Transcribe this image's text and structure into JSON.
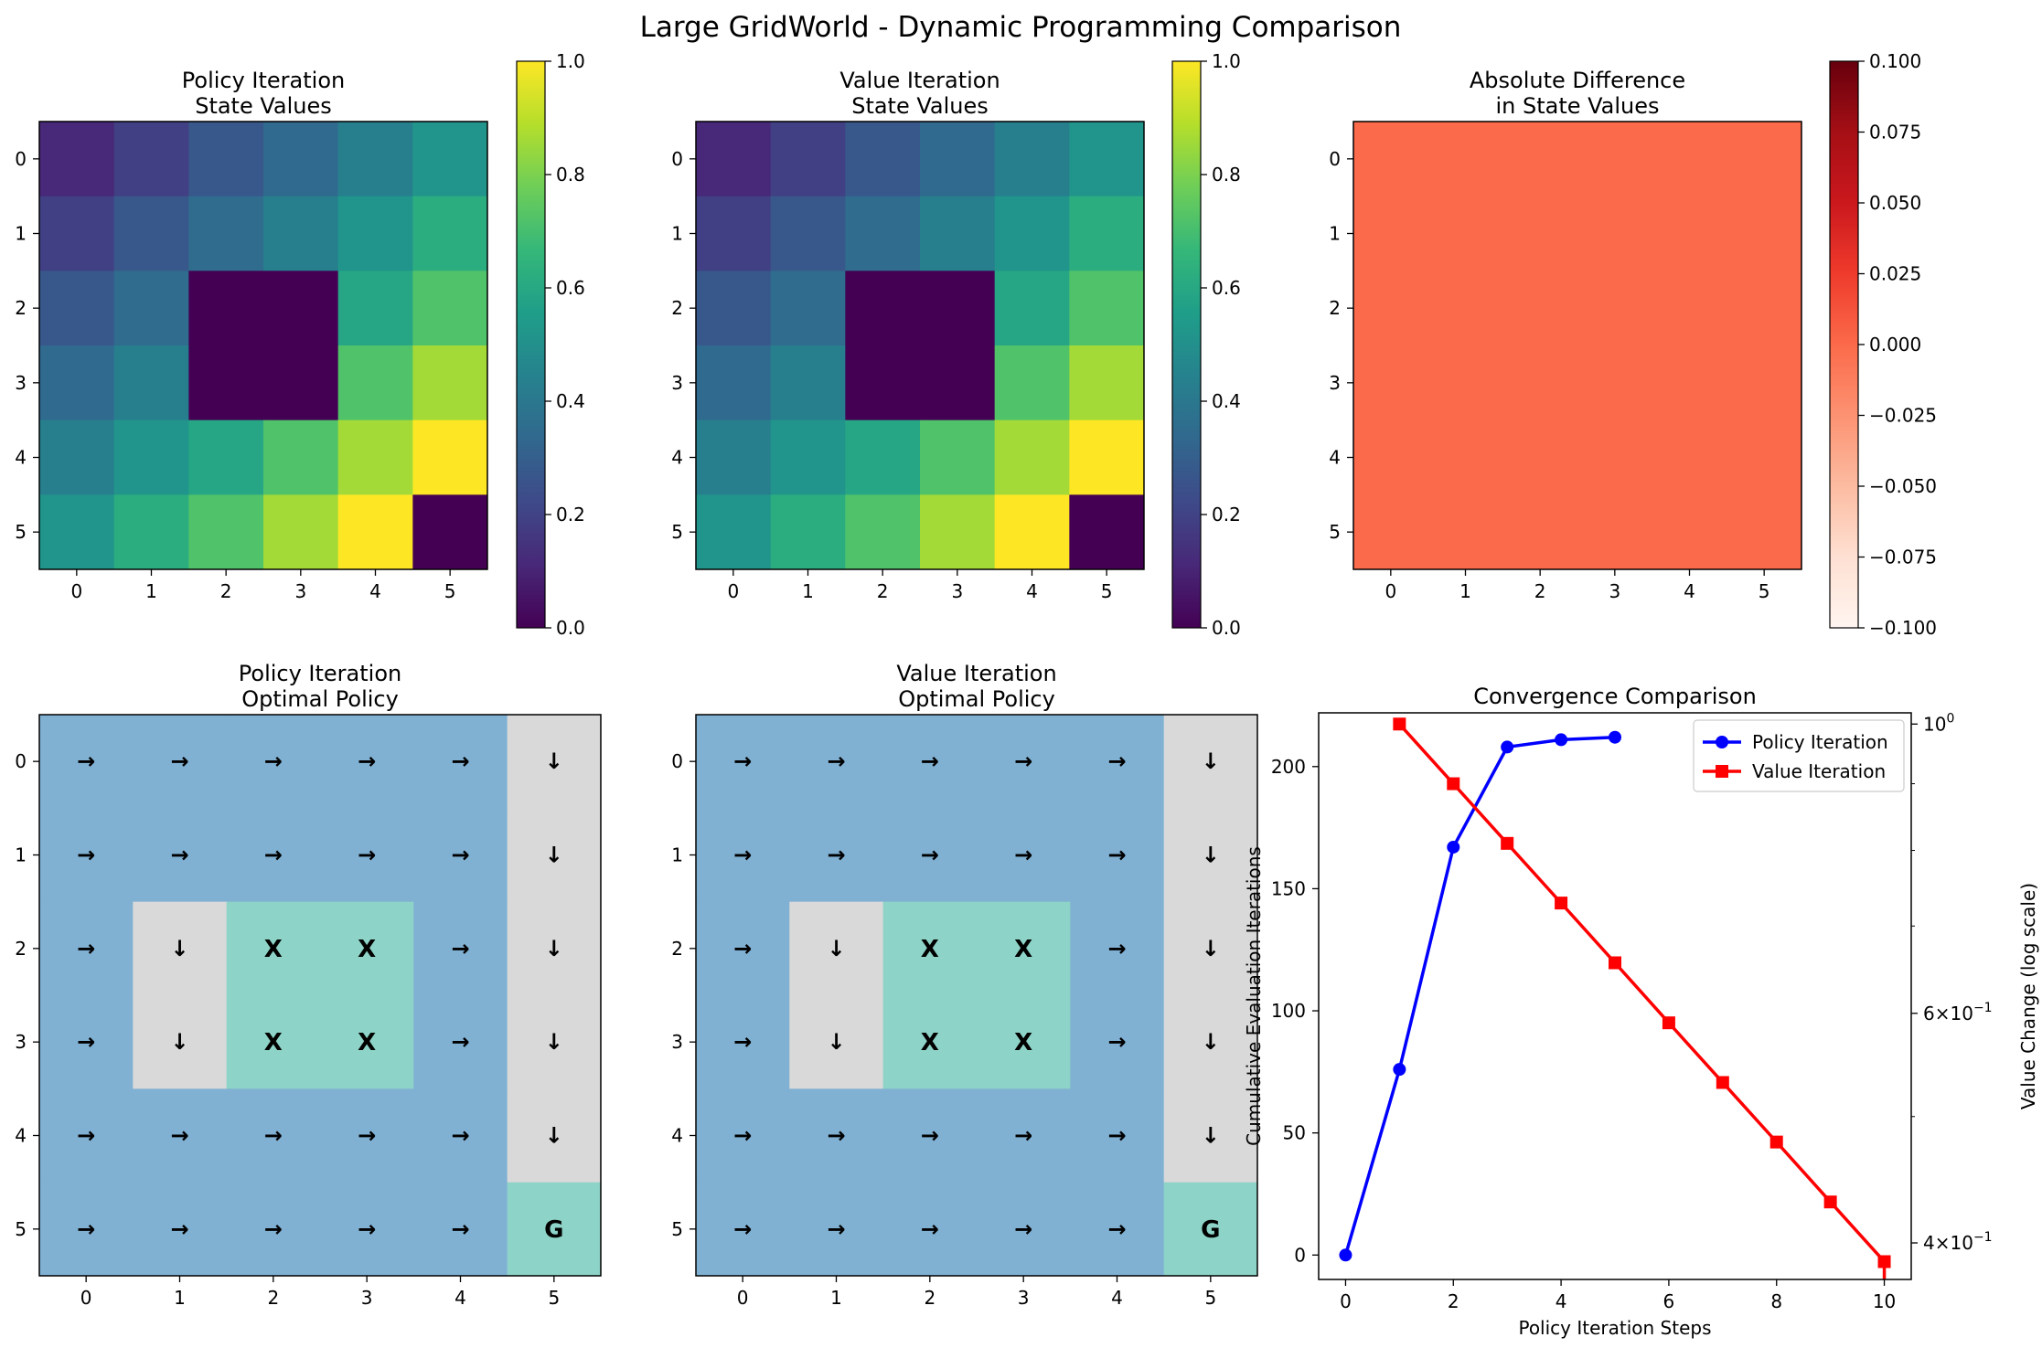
{
  "figure": {
    "title": "Large GridWorld - Dynamic Programming Comparison"
  },
  "colors": {
    "viridis_stops": [
      "#440154",
      "#482878",
      "#3e4a89",
      "#31688e",
      "#26828e",
      "#1f9e89",
      "#35b779",
      "#6ece58",
      "#b5de2b",
      "#fde725"
    ],
    "reds_stops": [
      "#fff5f0",
      "#fee0d2",
      "#fcbba1",
      "#fc9272",
      "#fb6a4a",
      "#ef3b2c",
      "#cb181d",
      "#a50f15",
      "#67000d"
    ],
    "policy_grid_blue": "#80b1d3",
    "policy_grid_gray": "#d9d9d9",
    "policy_grid_teal": "#8dd3c7",
    "policy_series": "#0000ff",
    "value_series": "#ff0000",
    "obstacle_mark": "#ff0000",
    "goal_mark": "#008000"
  },
  "chart_data": [
    {
      "type": "heatmap",
      "title": "Policy Iteration\nState Values",
      "x_ticks": [
        "0",
        "1",
        "2",
        "3",
        "4",
        "5"
      ],
      "y_ticks": [
        "0",
        "1",
        "2",
        "3",
        "4",
        "5"
      ],
      "colormap": "viridis",
      "colorbar": {
        "range": [
          0,
          1
        ],
        "ticks": [
          "0.0",
          "0.2",
          "0.4",
          "0.6",
          "0.8",
          "1.0"
        ]
      },
      "values": [
        [
          0.11,
          0.19,
          0.27,
          0.34,
          0.43,
          0.52
        ],
        [
          0.19,
          0.27,
          0.35,
          0.43,
          0.52,
          0.62
        ],
        [
          0.27,
          0.35,
          0.0,
          0.0,
          0.59,
          0.72
        ],
        [
          0.34,
          0.43,
          0.0,
          0.0,
          0.72,
          0.86
        ],
        [
          0.43,
          0.52,
          0.59,
          0.72,
          0.86,
          1.0
        ],
        [
          0.52,
          0.62,
          0.72,
          0.86,
          1.0,
          0.0
        ]
      ]
    },
    {
      "type": "heatmap",
      "title": "Value Iteration\nState Values",
      "x_ticks": [
        "0",
        "1",
        "2",
        "3",
        "4",
        "5"
      ],
      "y_ticks": [
        "0",
        "1",
        "2",
        "3",
        "4",
        "5"
      ],
      "colormap": "viridis",
      "colorbar": {
        "range": [
          0,
          1
        ],
        "ticks": [
          "0.0",
          "0.2",
          "0.4",
          "0.6",
          "0.8",
          "1.0"
        ]
      },
      "values": [
        [
          0.11,
          0.19,
          0.27,
          0.34,
          0.43,
          0.52
        ],
        [
          0.19,
          0.27,
          0.35,
          0.43,
          0.52,
          0.62
        ],
        [
          0.27,
          0.35,
          0.0,
          0.0,
          0.59,
          0.72
        ],
        [
          0.34,
          0.43,
          0.0,
          0.0,
          0.72,
          0.86
        ],
        [
          0.43,
          0.52,
          0.59,
          0.72,
          0.86,
          1.0
        ],
        [
          0.52,
          0.62,
          0.72,
          0.86,
          1.0,
          0.0
        ]
      ]
    },
    {
      "type": "heatmap",
      "title": "Absolute Difference\nin State Values",
      "x_ticks": [
        "0",
        "1",
        "2",
        "3",
        "4",
        "5"
      ],
      "y_ticks": [
        "0",
        "1",
        "2",
        "3",
        "4",
        "5"
      ],
      "colormap": "reds",
      "colorbar": {
        "range": [
          -0.1,
          0.1
        ],
        "ticks": [
          "−0.100",
          "−0.075",
          "−0.050",
          "−0.025",
          "0.000",
          "0.025",
          "0.050",
          "0.075",
          "0.100"
        ]
      },
      "values": [
        [
          0,
          0,
          0,
          0,
          0,
          0
        ],
        [
          0,
          0,
          0,
          0,
          0,
          0
        ],
        [
          0,
          0,
          0,
          0,
          0,
          0
        ],
        [
          0,
          0,
          0,
          0,
          0,
          0
        ],
        [
          0,
          0,
          0,
          0,
          0,
          0
        ],
        [
          0,
          0,
          0,
          0,
          0,
          0
        ]
      ]
    },
    {
      "type": "heatmap",
      "title": "Policy Iteration\nOptimal Policy",
      "x_ticks": [
        "0",
        "1",
        "2",
        "3",
        "4",
        "5"
      ],
      "y_ticks": [
        "0",
        "1",
        "2",
        "3",
        "4",
        "5"
      ],
      "cell_kinds": [
        [
          "blue",
          "blue",
          "blue",
          "blue",
          "blue",
          "gray"
        ],
        [
          "blue",
          "blue",
          "blue",
          "blue",
          "blue",
          "gray"
        ],
        [
          "blue",
          "gray",
          "teal",
          "teal",
          "blue",
          "gray"
        ],
        [
          "blue",
          "gray",
          "teal",
          "teal",
          "blue",
          "gray"
        ],
        [
          "blue",
          "blue",
          "blue",
          "blue",
          "blue",
          "gray"
        ],
        [
          "blue",
          "blue",
          "blue",
          "blue",
          "blue",
          "teal"
        ]
      ],
      "symbols": [
        [
          "→",
          "→",
          "→",
          "→",
          "→",
          "↓"
        ],
        [
          "→",
          "→",
          "→",
          "→",
          "→",
          "↓"
        ],
        [
          "→",
          "↓",
          "X",
          "X",
          "→",
          "↓"
        ],
        [
          "→",
          "↓",
          "X",
          "X",
          "→",
          "↓"
        ],
        [
          "→",
          "→",
          "→",
          "→",
          "→",
          "↓"
        ],
        [
          "→",
          "→",
          "→",
          "→",
          "→",
          "G"
        ]
      ]
    },
    {
      "type": "heatmap",
      "title": "Value Iteration\nOptimal Policy",
      "x_ticks": [
        "0",
        "1",
        "2",
        "3",
        "4",
        "5"
      ],
      "y_ticks": [
        "0",
        "1",
        "2",
        "3",
        "4",
        "5"
      ],
      "cell_kinds": [
        [
          "blue",
          "blue",
          "blue",
          "blue",
          "blue",
          "gray"
        ],
        [
          "blue",
          "blue",
          "blue",
          "blue",
          "blue",
          "gray"
        ],
        [
          "blue",
          "gray",
          "teal",
          "teal",
          "blue",
          "gray"
        ],
        [
          "blue",
          "gray",
          "teal",
          "teal",
          "blue",
          "gray"
        ],
        [
          "blue",
          "blue",
          "blue",
          "blue",
          "blue",
          "gray"
        ],
        [
          "blue",
          "blue",
          "blue",
          "blue",
          "blue",
          "teal"
        ]
      ],
      "symbols": [
        [
          "→",
          "→",
          "→",
          "→",
          "→",
          "↓"
        ],
        [
          "→",
          "→",
          "→",
          "→",
          "→",
          "↓"
        ],
        [
          "→",
          "↓",
          "X",
          "X",
          "→",
          "↓"
        ],
        [
          "→",
          "↓",
          "X",
          "X",
          "→",
          "↓"
        ],
        [
          "→",
          "→",
          "→",
          "→",
          "→",
          "↓"
        ],
        [
          "→",
          "→",
          "→",
          "→",
          "→",
          "G"
        ]
      ]
    },
    {
      "type": "line",
      "title": "Convergence Comparison",
      "xlabel": "Policy Iteration Steps",
      "ylabel_left": "Cumulative Evaluation Iterations",
      "ylabel_right": "Value Change (log scale)",
      "xlim": [
        -0.5,
        10.5
      ],
      "x_ticks": [
        0,
        2,
        4,
        6,
        8,
        10
      ],
      "ylim_left": [
        -10,
        222
      ],
      "y_ticks_left": [
        0,
        50,
        100,
        150,
        200
      ],
      "ylim_right_log": [
        0.375,
        1.02
      ],
      "y_ticks_right": [
        {
          "value": 1.0,
          "base": "10",
          "exp": "0"
        },
        {
          "value": 0.6,
          "base": "6×10",
          "exp": "−1"
        },
        {
          "value": 0.4,
          "base": "4×10",
          "exp": "−1"
        }
      ],
      "y_minor_ticks_right": [
        0.5,
        0.7,
        0.8,
        0.9
      ],
      "legend_position": "top-right",
      "series": [
        {
          "name": "Policy Iteration",
          "axis": "left",
          "marker": "circle",
          "x": [
            0,
            1,
            2,
            3,
            4,
            5
          ],
          "y": [
            0,
            76,
            167,
            208,
            211,
            212
          ]
        },
        {
          "name": "Value Iteration",
          "axis": "right",
          "marker": "square",
          "x": [
            1,
            2,
            3,
            4,
            5,
            6,
            7,
            8,
            9,
            10
          ],
          "y": [
            1.0,
            0.9,
            0.81,
            0.729,
            0.656,
            0.59,
            0.531,
            0.478,
            0.43,
            0.387
          ]
        }
      ]
    }
  ]
}
